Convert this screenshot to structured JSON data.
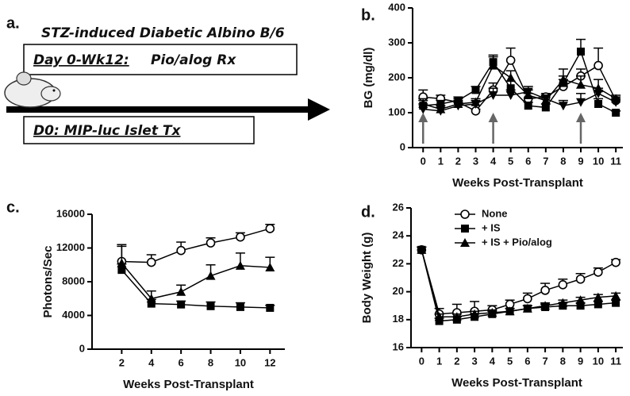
{
  "diagram": {
    "label": "a.",
    "title": "STZ-induced Diabetic Albino B/6",
    "box1_underlined": "Day 0-Wk12:",
    "box1_rest": "Pio/alog Rx",
    "box2": "D0: MIP-luc Islet Tx"
  },
  "chart_data": [
    {
      "type": "line",
      "panel_label": "b.",
      "x_label": "Weeks Post-Transplant",
      "y_label": "BG (mg/dl)",
      "x": [
        0,
        1,
        2,
        3,
        4,
        5,
        6,
        7,
        8,
        9,
        10,
        11
      ],
      "xlim": [
        -0.6,
        11.4
      ],
      "xticks": [
        0,
        1,
        2,
        3,
        4,
        5,
        6,
        7,
        8,
        9,
        10,
        11
      ],
      "ylim": [
        0,
        400
      ],
      "yticks": [
        0,
        100,
        200,
        300,
        400
      ],
      "arrow_weeks": [
        0,
        4,
        9
      ],
      "arrow_color": "#666666",
      "series": [
        {
          "marker": "circle-open",
          "color": "#000000",
          "values": [
            145,
            140,
            130,
            105,
            165,
            250,
            140,
            145,
            175,
            205,
            235,
            135
          ],
          "errors": [
            20,
            10,
            10,
            5,
            20,
            35,
            15,
            10,
            20,
            20,
            50,
            10
          ]
        },
        {
          "marker": "square",
          "color": "#000000",
          "values": [
            120,
            125,
            135,
            165,
            245,
            170,
            120,
            115,
            185,
            275,
            125,
            100
          ],
          "errors": [
            15,
            10,
            10,
            10,
            20,
            20,
            10,
            10,
            20,
            35,
            15,
            5
          ]
        },
        {
          "marker": "triangle-up",
          "color": "#000000",
          "values": [
            125,
            110,
            125,
            130,
            235,
            200,
            150,
            135,
            195,
            180,
            170,
            140
          ],
          "errors": [
            15,
            10,
            10,
            10,
            25,
            20,
            15,
            15,
            30,
            25,
            25,
            10
          ]
        },
        {
          "marker": "triangle-down",
          "color": "#000000",
          "values": [
            110,
            105,
            120,
            125,
            150,
            150,
            160,
            140,
            120,
            130,
            155,
            130
          ],
          "errors": [
            15,
            10,
            10,
            10,
            20,
            15,
            15,
            10,
            15,
            25,
            15,
            10
          ]
        }
      ]
    },
    {
      "type": "line",
      "panel_label": "c.",
      "x_label": "Weeks Post-Transplant",
      "y_label": "Photons/Sec",
      "x": [
        2,
        4,
        6,
        8,
        10,
        12
      ],
      "xlim": [
        0,
        13
      ],
      "xticks": [
        2,
        4,
        6,
        8,
        10,
        12
      ],
      "ylim": [
        0,
        16000
      ],
      "yticks": [
        0,
        4000,
        8000,
        12000,
        16000
      ],
      "series": [
        {
          "marker": "circle-open",
          "color": "#000000",
          "values": [
            10400,
            10300,
            11700,
            12600,
            13300,
            14300
          ],
          "errors": [
            2000,
            900,
            1000,
            600,
            500,
            500
          ]
        },
        {
          "marker": "square",
          "color": "#000000",
          "values": [
            9400,
            5400,
            5300,
            5100,
            5000,
            4900
          ],
          "errors": [
            700,
            500,
            400,
            500,
            500,
            300
          ]
        },
        {
          "marker": "triangle-up",
          "color": "#000000",
          "values": [
            10200,
            6000,
            6800,
            8700,
            9900,
            9700
          ],
          "errors": [
            2000,
            900,
            800,
            1300,
            1500,
            1200
          ]
        }
      ]
    },
    {
      "type": "line",
      "panel_label": "d.",
      "x_label": "Weeks Post-Transplant",
      "y_label": "Body Weight (g)",
      "x": [
        0,
        1,
        2,
        3,
        4,
        5,
        6,
        7,
        8,
        9,
        10,
        11
      ],
      "xlim": [
        -0.6,
        11.4
      ],
      "xticks": [
        0,
        1,
        2,
        3,
        4,
        5,
        6,
        7,
        8,
        9,
        10,
        11
      ],
      "ylim": [
        16,
        26
      ],
      "yticks": [
        16,
        18,
        20,
        22,
        24,
        26
      ],
      "legend": "upper-left",
      "series": [
        {
          "name": "None",
          "marker": "circle-open",
          "color": "#000000",
          "values": [
            23,
            18.4,
            18.5,
            18.6,
            18.7,
            19.1,
            19.5,
            20.1,
            20.5,
            20.9,
            21.4,
            22.1
          ],
          "errors": [
            0.2,
            0.4,
            0.6,
            0.7,
            0.3,
            0.3,
            0.4,
            0.5,
            0.4,
            0.4,
            0.3,
            0.2
          ]
        },
        {
          "name": "+ IS",
          "marker": "square",
          "color": "#000000",
          "values": [
            23,
            17.9,
            18.0,
            18.2,
            18.4,
            18.6,
            18.8,
            18.9,
            19.0,
            19.0,
            19.1,
            19.2
          ],
          "errors": [
            0.2,
            0.2,
            0.2,
            0.2,
            0.2,
            0.2,
            0.2,
            0.2,
            0.2,
            0.2,
            0.2,
            0.2
          ]
        },
        {
          "name": "+ IS + Pio/alog",
          "marker": "triangle-up",
          "color": "#000000",
          "values": [
            23,
            18.2,
            18.2,
            18.4,
            18.5,
            18.6,
            18.8,
            19.0,
            19.2,
            19.4,
            19.6,
            19.7
          ],
          "errors": [
            0.2,
            0.2,
            0.2,
            0.2,
            0.2,
            0.2,
            0.2,
            0.2,
            0.2,
            0.2,
            0.2,
            0.2
          ]
        }
      ]
    }
  ]
}
